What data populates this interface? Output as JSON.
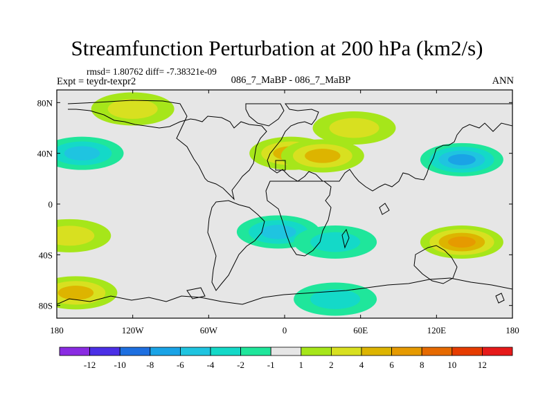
{
  "chart_data": {
    "type": "heatmap",
    "title": "Streamfunction Perturbation at 200 hPa (km2/s)",
    "stats_label": "rmsd= 1.80762 diff= -7.38321e-09",
    "left_string": "Expt = teydr-texpr2",
    "center_string": "086_7_MaBP - 086_7_MaBP",
    "right_string": "ANN",
    "xlabel": "",
    "ylabel": "",
    "xlim": [
      -180,
      180
    ],
    "ylim": [
      -90,
      90
    ],
    "x_ticks": [
      {
        "value": -180,
        "label": "180"
      },
      {
        "value": -120,
        "label": "120W"
      },
      {
        "value": -60,
        "label": "60W"
      },
      {
        "value": 0,
        "label": "0"
      },
      {
        "value": 60,
        "label": "60E"
      },
      {
        "value": 120,
        "label": "120E"
      },
      {
        "value": 180,
        "label": "180"
      }
    ],
    "y_ticks": [
      {
        "value": 80,
        "label": "80N"
      },
      {
        "value": 40,
        "label": "40N"
      },
      {
        "value": 0,
        "label": "0"
      },
      {
        "value": -40,
        "label": "40S"
      },
      {
        "value": -80,
        "label": "80S"
      }
    ],
    "colorbar": {
      "colors": [
        "#8a2be2",
        "#4b2fe6",
        "#1e6fe0",
        "#1aa3e6",
        "#1fc4e0",
        "#14d9c8",
        "#1fe69b",
        "#e6e6e6",
        "#a6e61a",
        "#d8e020",
        "#ddb400",
        "#e69a00",
        "#e66a00",
        "#e63c00",
        "#e61a1a"
      ],
      "labels": [
        "-12",
        "-10",
        "-8",
        "-6",
        "-4",
        "-2",
        "-1",
        "1",
        "2",
        "4",
        "6",
        "8",
        "10",
        "12"
      ]
    },
    "anomalies": [
      {
        "name": "north-atlantic-europe-positive",
        "lon": 5,
        "lat": 40,
        "value": 4.0
      },
      {
        "name": "central-asia-positive",
        "lon": 30,
        "lat": 38,
        "value": 5.0
      },
      {
        "name": "siberia-positive",
        "lon": 55,
        "lat": 60,
        "value": 2.5
      },
      {
        "name": "north-pacific-east-negative",
        "lon": -160,
        "lat": 40,
        "value": -4.0
      },
      {
        "name": "north-pacific-west-negative",
        "lon": 140,
        "lat": 35,
        "value": -6.5
      },
      {
        "name": "arctic-alaska-positive",
        "lon": -120,
        "lat": 75,
        "value": 2.0
      },
      {
        "name": "south-atlantic-negative",
        "lon": -5,
        "lat": -22,
        "value": -4.0
      },
      {
        "name": "indian-ocean-negative",
        "lon": 40,
        "lat": -30,
        "value": -3.0
      },
      {
        "name": "south-pacific-west-positive",
        "lon": 140,
        "lat": -30,
        "value": 6.0
      },
      {
        "name": "south-pacific-east-positive",
        "lon": -170,
        "lat": -25,
        "value": 3.0
      },
      {
        "name": "southern-ocean-positive",
        "lon": -165,
        "lat": -70,
        "value": 4.0
      },
      {
        "name": "antarctic-margin-negative",
        "lon": 40,
        "lat": -75,
        "value": -3.0
      }
    ]
  }
}
